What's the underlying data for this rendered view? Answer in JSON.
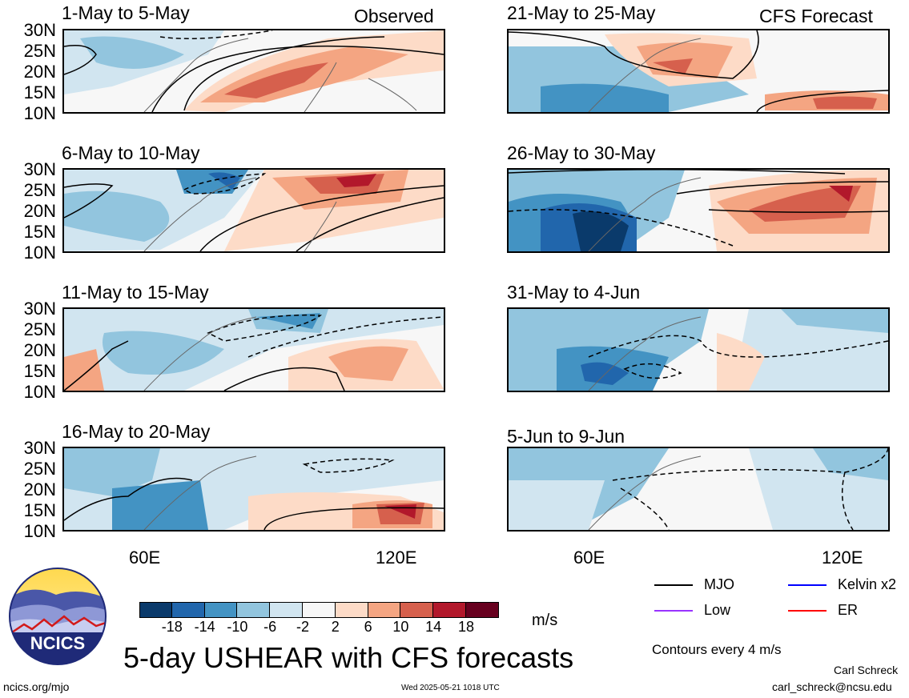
{
  "panels_left": [
    {
      "title": "1-May to 5-May",
      "tag": "Observed"
    },
    {
      "title": "6-May to 10-May",
      "tag": ""
    },
    {
      "title": "11-May to 15-May",
      "tag": ""
    },
    {
      "title": "16-May to 20-May",
      "tag": ""
    }
  ],
  "panels_right": [
    {
      "title": "21-May to 25-May",
      "tag": "CFS Forecast"
    },
    {
      "title": "26-May to 30-May",
      "tag": ""
    },
    {
      "title": "31-May to 4-Jun",
      "tag": ""
    },
    {
      "title": "5-Jun to 9-Jun",
      "tag": ""
    }
  ],
  "lat_labels": [
    "30N",
    "25N",
    "20N",
    "15N",
    "10N"
  ],
  "lon_labels": [
    "60E",
    "120E"
  ],
  "colorbar": {
    "colors": [
      "#0a3a6b",
      "#2166ac",
      "#4393c3",
      "#92c5de",
      "#d1e5f0",
      "#f7f7f7",
      "#fddbc7",
      "#f4a582",
      "#d6604d",
      "#b2182b",
      "#67001f"
    ],
    "labels": [
      "-18",
      "-14",
      "-10",
      "-6",
      "-2",
      "2",
      "6",
      "10",
      "14",
      "18"
    ],
    "unit": "m/s"
  },
  "legend": {
    "mjo": {
      "label": "MJO",
      "color": "#000000"
    },
    "kelvin": {
      "label": "Kelvin x2",
      "color": "#0000ff"
    },
    "low": {
      "label": "Low",
      "color": "#9933ff"
    },
    "er": {
      "label": "ER",
      "color": "#ff0000"
    },
    "contours_note": "Contours every 4 m/s"
  },
  "logo_text": "NCICS",
  "main_title": "5-day USHEAR with CFS forecasts",
  "footer": {
    "url": "ncics.org/mjo",
    "timestamp": "Wed 2025-05-21 1018 UTC",
    "author": "Carl Schreck",
    "email": "carl_schreck@ncsu.edu"
  }
}
